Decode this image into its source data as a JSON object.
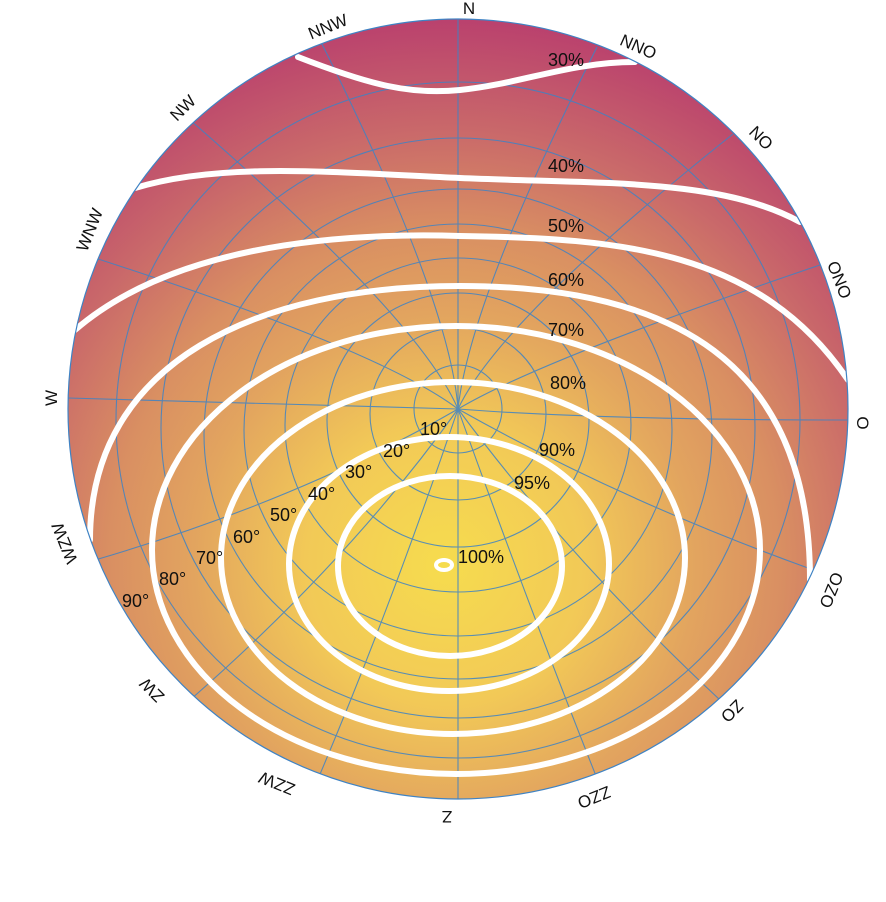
{
  "colors": {
    "outer": "#b83c6e",
    "mid": "#d98f62",
    "inner": "#f6dc4e",
    "grid": "#3f83c4",
    "contour": "#ffffff"
  },
  "compass": {
    "N": "N",
    "NNO": "NNO",
    "NO": "NO",
    "ONO": "ONO",
    "O": "O",
    "OZO": "OZO",
    "ZO": "ZO",
    "ZZO": "ZZO",
    "Z": "Z",
    "ZZW": "ZZW",
    "ZW": "ZW",
    "WZW": "WZW",
    "W": "W",
    "WNW": "WNW",
    "NW": "NW",
    "NNW": "NNW"
  },
  "contours": {
    "c30": "30%",
    "c40": "40%",
    "c50": "50%",
    "c60": "60%",
    "c70": "70%",
    "c80": "80%",
    "c90": "90%",
    "c95": "95%",
    "c100": "100%"
  },
  "tilt": {
    "t10": "10°",
    "t20": "20°",
    "t30": "30°",
    "t40": "40°",
    "t50": "50°",
    "t60": "60°",
    "t70": "70°",
    "t80": "80°",
    "t90": "90°"
  }
}
